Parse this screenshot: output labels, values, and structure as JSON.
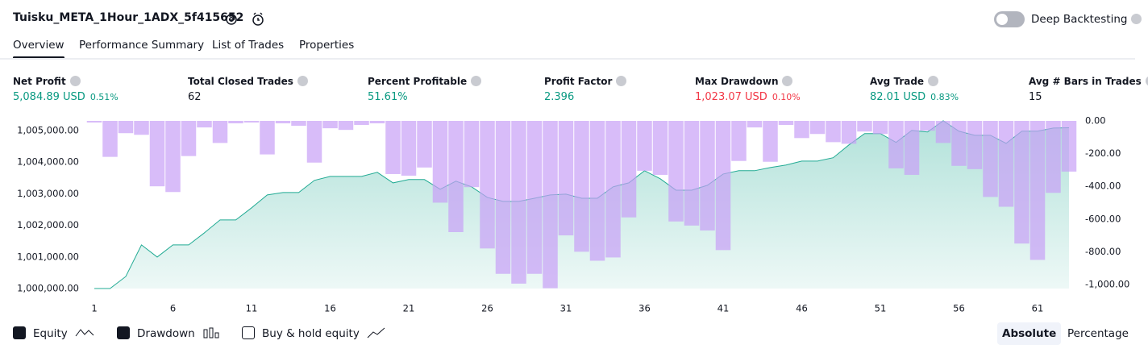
{
  "header": {
    "title": "Tuisku_META_1Hour_1ADX_5f415652",
    "deep_backtesting": "Deep Backtesting"
  },
  "tabs": [
    "Overview",
    "Performance Summary",
    "List of Trades",
    "Properties"
  ],
  "metrics": [
    {
      "label": "Net Profit",
      "value": "5,084.89 USD",
      "pct": "0.51%",
      "tone": "green"
    },
    {
      "label": "Total Closed Trades",
      "value": "62"
    },
    {
      "label": "Percent Profitable",
      "value": "51.61%",
      "tone": "green"
    },
    {
      "label": "Profit Factor",
      "value": "2.396",
      "tone": "green"
    },
    {
      "label": "Max Drawdown",
      "value": "1,023.07 USD",
      "pct": "0.10%",
      "tone": "red"
    },
    {
      "label": "Avg Trade",
      "value": "82.01 USD",
      "pct": "0.83%",
      "tone": "green"
    },
    {
      "label": "Avg # Bars in Trades",
      "value": "15"
    }
  ],
  "legend": [
    "Equity",
    "Drawdown",
    "Buy & hold equity"
  ],
  "view_modes": [
    "Absolute",
    "Percentage"
  ],
  "chart_data": {
    "type": "line",
    "x": [
      1,
      2,
      3,
      4,
      5,
      6,
      7,
      8,
      9,
      10,
      11,
      12,
      13,
      14,
      15,
      16,
      17,
      18,
      19,
      20,
      21,
      22,
      23,
      24,
      25,
      26,
      27,
      28,
      29,
      30,
      31,
      32,
      33,
      34,
      35,
      36,
      37,
      38,
      39,
      40,
      41,
      42,
      43,
      44,
      45,
      46,
      47,
      48,
      49,
      50,
      51,
      52,
      53,
      54,
      55,
      56,
      57,
      58,
      59,
      60,
      61,
      62,
      63
    ],
    "xlim": [
      1,
      63
    ],
    "xticks": [
      1,
      6,
      11,
      16,
      21,
      26,
      31,
      36,
      41,
      46,
      51,
      56,
      61
    ],
    "ylim": [
      1000000,
      1005300
    ],
    "yticks": [
      {
        "value": 1000000,
        "label": "1,000,000.00"
      },
      {
        "value": 1001000,
        "label": "1,001,000.00"
      },
      {
        "value": 1002000,
        "label": "1,002,000.00"
      },
      {
        "value": 1003000,
        "label": "1,003,000.00"
      },
      {
        "value": 1004000,
        "label": "1,004,000.00"
      },
      {
        "value": 1005000,
        "label": "1,005,000.00"
      }
    ],
    "y2lim": [
      -1025,
      0
    ],
    "y2ticks": [
      {
        "value": 0,
        "label": "0.00"
      },
      {
        "value": -200,
        "label": "-200.00"
      },
      {
        "value": -400,
        "label": "-400.00"
      },
      {
        "value": -600,
        "label": "-600.00"
      },
      {
        "value": -800,
        "label": "-800.00"
      },
      {
        "value": -1000,
        "label": "-1,000.00"
      }
    ],
    "series": [
      {
        "name": "Equity",
        "type": "area",
        "color": "#22ab94",
        "values": [
          1000000,
          1000000,
          1000380,
          1001380,
          1000995,
          1001380,
          1001380,
          1001760,
          1002170,
          1002170,
          1002550,
          1002960,
          1003035,
          1003035,
          1003420,
          1003545,
          1003545,
          1003545,
          1003675,
          1003340,
          1003445,
          1003445,
          1003140,
          1003395,
          1003215,
          1002880,
          1002755,
          1002755,
          1002855,
          1002960,
          1002985,
          1002855,
          1002855,
          1003215,
          1003340,
          1003725,
          1003470,
          1003110,
          1003110,
          1003265,
          1003620,
          1003725,
          1003725,
          1003825,
          1003905,
          1004030,
          1004030,
          1004135,
          1004540,
          1004900,
          1004900,
          1004620,
          1005000,
          1004950,
          1005305,
          1004975,
          1004845,
          1004845,
          1004590,
          1004975,
          1004975,
          1005075,
          1005084.89
        ]
      },
      {
        "name": "Drawdown",
        "type": "bar",
        "axis": "y2",
        "color": "#c7a0f7",
        "values": [
          -10,
          -220,
          -75,
          -85,
          -400,
          -435,
          -215,
          -40,
          -135,
          -15,
          -10,
          -205,
          -15,
          -30,
          -255,
          -45,
          -55,
          -25,
          -15,
          -325,
          -335,
          -285,
          -500,
          -680,
          -405,
          -780,
          -935,
          -995,
          -935,
          -1023.07,
          -700,
          -800,
          -855,
          -835,
          -590,
          -305,
          -330,
          -615,
          -640,
          -670,
          -790,
          -245,
          -40,
          -250,
          -25,
          -105,
          -80,
          -130,
          -140,
          -65,
          -80,
          -290,
          -330,
          -60,
          -135,
          -275,
          -295,
          -465,
          -525,
          -750,
          -850,
          -440,
          -310
        ]
      }
    ]
  }
}
